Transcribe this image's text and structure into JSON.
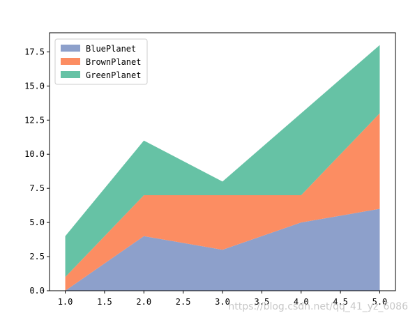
{
  "chart_data": {
    "type": "area",
    "stacked": true,
    "x": [
      1,
      2,
      3,
      4,
      5
    ],
    "series": [
      {
        "name": "BluePlanet",
        "values": [
          0,
          4,
          3,
          5,
          6
        ],
        "color": "#8da0cb"
      },
      {
        "name": "BrownPlanet",
        "values": [
          1,
          3,
          4,
          2,
          7
        ],
        "color": "#fc8d62"
      },
      {
        "name": "GreenPlanet",
        "values": [
          3,
          4,
          1,
          6,
          5
        ],
        "color": "#66c2a5"
      }
    ],
    "xlim": [
      0.8,
      5.2
    ],
    "ylim": [
      0,
      18.9
    ],
    "xticks": [
      "1.0",
      "1.5",
      "2.0",
      "2.5",
      "3.0",
      "3.5",
      "4.0",
      "4.5",
      "5.0"
    ],
    "yticks": [
      "0.0",
      "2.5",
      "5.0",
      "7.5",
      "10.0",
      "12.5",
      "15.0",
      "17.5"
    ],
    "title": "",
    "xlabel": "",
    "ylabel": "",
    "grid": false,
    "legend_position": "top-left"
  },
  "watermark": "https://blog.csdn.net/qq_41_yz_6086"
}
